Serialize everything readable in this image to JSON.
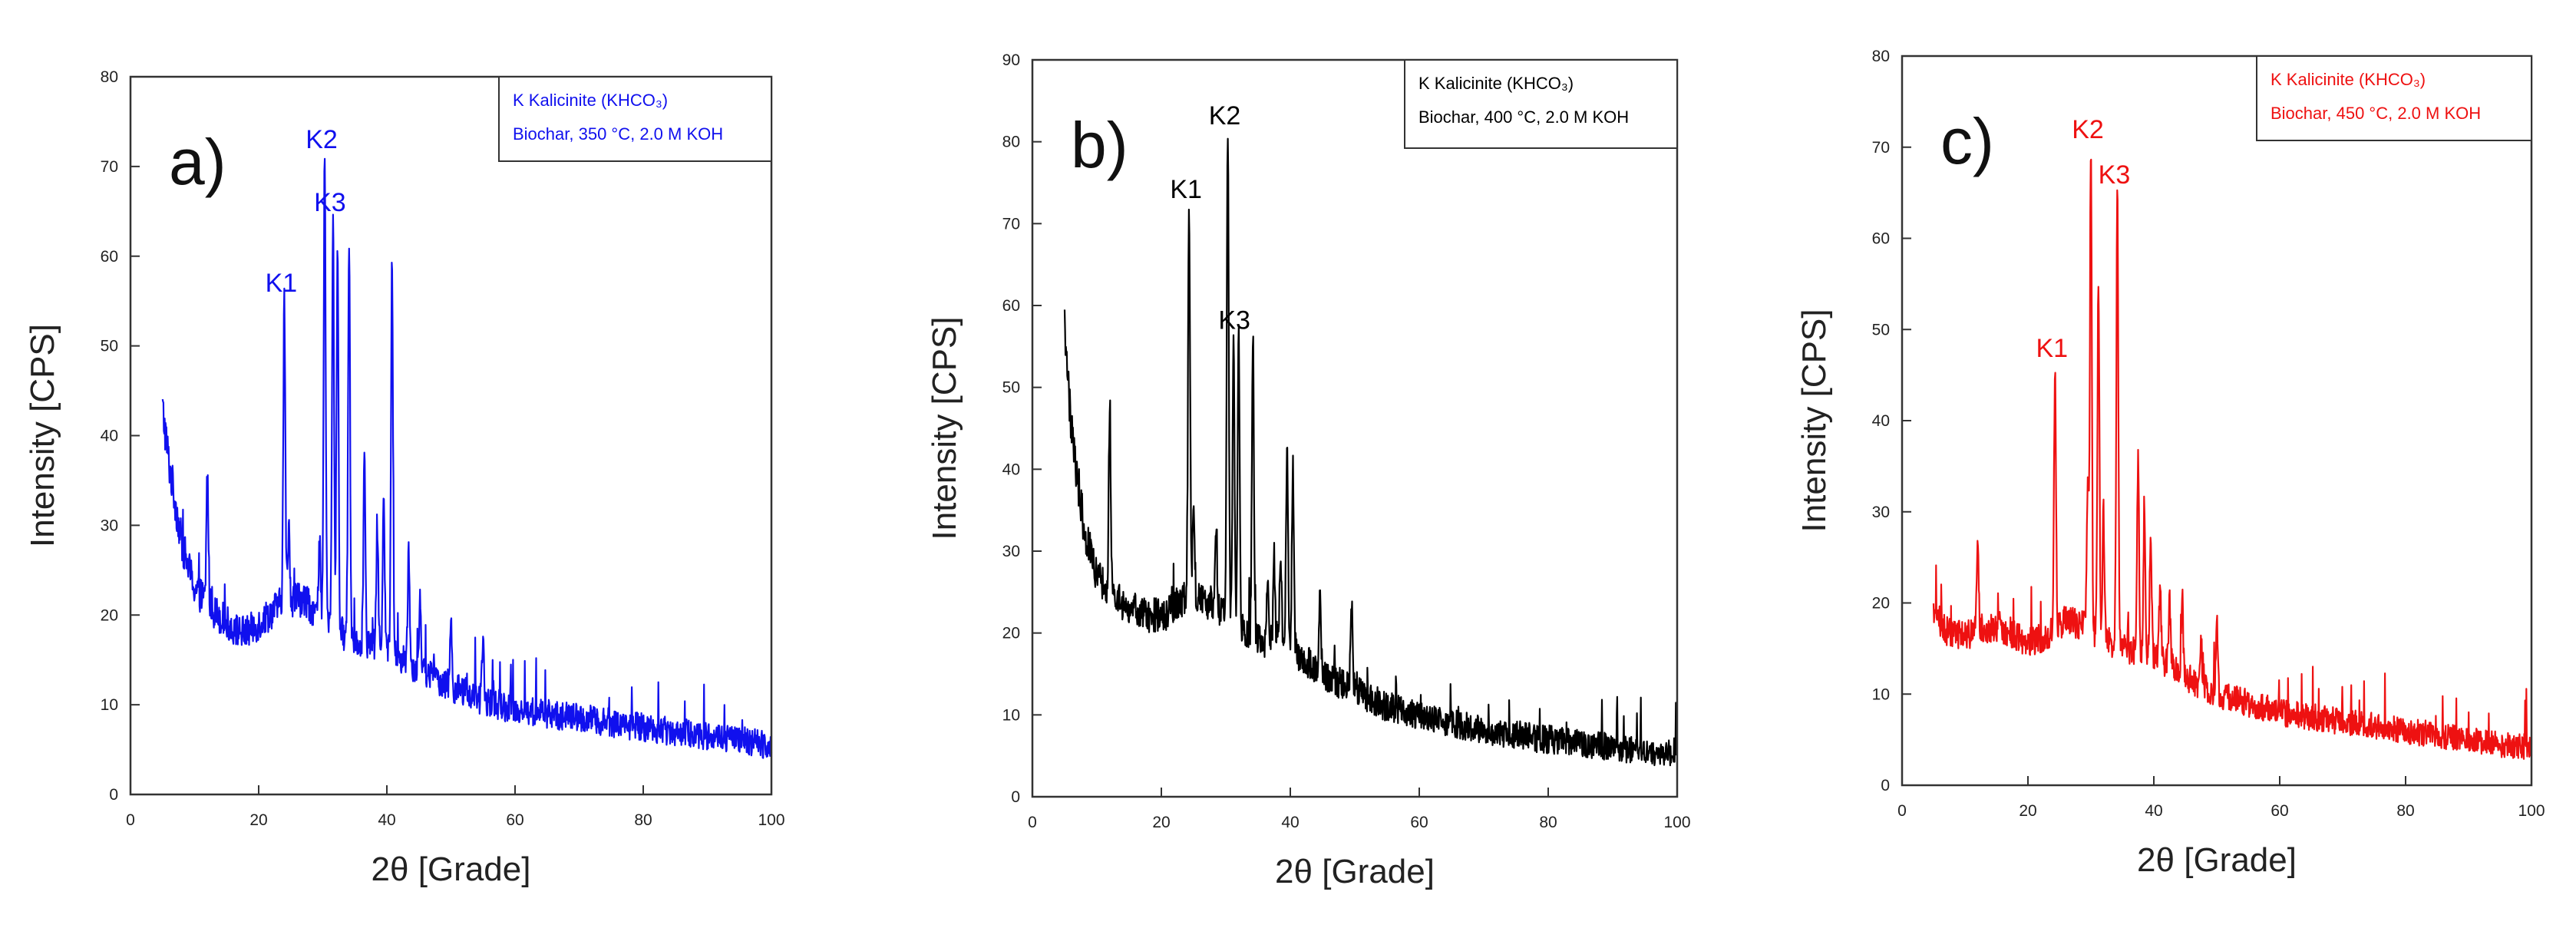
{
  "chart_data": [
    {
      "type": "line",
      "panel_label": "a)",
      "color": "#1010ee",
      "xlabel": "2θ [Grade]",
      "ylabel": "Intensity [CPS]",
      "xlim": [
        0,
        100
      ],
      "ylim": [
        0,
        80
      ],
      "xticks": [
        "0",
        "20",
        "40",
        "60",
        "80",
        "100"
      ],
      "yticks": [
        "0",
        "10",
        "20",
        "30",
        "40",
        "50",
        "60",
        "70",
        "80"
      ],
      "grid": false,
      "legend": {
        "position": "top-right",
        "entries": [
          "K Kalicinite (KHCO₃)",
          "Biochar, 350 °C, 2.0 M KOH"
        ]
      },
      "peak_labels": [
        {
          "text": "K1",
          "x": 24.0,
          "y": 55
        },
        {
          "text": "K2",
          "x": 30.3,
          "y": 71
        },
        {
          "text": "K3",
          "x": 31.6,
          "y": 64
        }
      ],
      "series": [
        {
          "background": [
            [
              5,
              43
            ],
            [
              6,
              37
            ],
            [
              8,
              28
            ],
            [
              10,
              23
            ],
            [
              13,
              20.5
            ],
            [
              16,
              18.5
            ],
            [
              18,
              18
            ],
            [
              20,
              19
            ],
            [
              23,
              21
            ],
            [
              26,
              22
            ],
            [
              28,
              21
            ],
            [
              30,
              19.5
            ],
            [
              33,
              18
            ],
            [
              36,
              17
            ],
            [
              40,
              16
            ],
            [
              45,
              14
            ],
            [
              50,
              12
            ],
            [
              55,
              10.5
            ],
            [
              60,
              9.5
            ],
            [
              65,
              9
            ],
            [
              70,
              8.5
            ],
            [
              75,
              8
            ],
            [
              80,
              7.5
            ],
            [
              85,
              7
            ],
            [
              90,
              6.5
            ],
            [
              95,
              6
            ],
            [
              100,
              5.5
            ]
          ],
          "peaks": [
            [
              12,
              36
            ],
            [
              24,
              55
            ],
            [
              24.7,
              30
            ],
            [
              29.5,
              27
            ],
            [
              30.3,
              71
            ],
            [
              31.6,
              64
            ],
            [
              32.3,
              61
            ],
            [
              34.1,
              62
            ],
            [
              36.5,
              38
            ],
            [
              38.5,
              30
            ],
            [
              39.5,
              34
            ],
            [
              40.8,
              60
            ],
            [
              43.4,
              27
            ],
            [
              45.2,
              22
            ],
            [
              50,
              19
            ],
            [
              55,
              17
            ]
          ],
          "noise": 2.4
        }
      ]
    },
    {
      "type": "line",
      "panel_label": "b)",
      "color": "#000000",
      "xlabel": "2θ [Grade]",
      "ylabel": "Intensity [CPS]",
      "xlim": [
        0,
        100
      ],
      "ylim": [
        0,
        90
      ],
      "xticks": [
        "0",
        "20",
        "40",
        "60",
        "80",
        "100"
      ],
      "yticks": [
        "0",
        "10",
        "20",
        "30",
        "40",
        "50",
        "60",
        "70",
        "80",
        "90"
      ],
      "grid": false,
      "legend": {
        "position": "top-right",
        "entries": [
          "K Kalicinite (KHCO₃)",
          "Biochar, 400 °C, 2.0 M KOH"
        ]
      },
      "peak_labels": [
        {
          "text": "K1",
          "x": 24.3,
          "y": 72
        },
        {
          "text": "K2",
          "x": 30.3,
          "y": 81
        },
        {
          "text": "K3",
          "x": 31.8,
          "y": 56
        }
      ],
      "series": [
        {
          "background": [
            [
              5,
              58
            ],
            [
              6,
              45
            ],
            [
              8,
              33
            ],
            [
              10,
              27
            ],
            [
              12,
              25
            ],
            [
              15,
              23
            ],
            [
              18,
              22
            ],
            [
              21,
              22.5
            ],
            [
              24,
              24.5
            ],
            [
              27,
              24
            ],
            [
              30,
              22
            ],
            [
              33,
              20
            ],
            [
              36,
              19
            ],
            [
              40,
              18
            ],
            [
              45,
              15
            ],
            [
              50,
              13
            ],
            [
              55,
              11
            ],
            [
              60,
              10
            ],
            [
              65,
              9
            ],
            [
              70,
              8
            ],
            [
              75,
              7.5
            ],
            [
              80,
              7
            ],
            [
              85,
              6.5
            ],
            [
              90,
              6
            ],
            [
              95,
              5.5
            ],
            [
              100,
              5.5
            ]
          ],
          "peaks": [
            [
              12,
              48
            ],
            [
              24.3,
              72
            ],
            [
              25,
              34
            ],
            [
              28.5,
              33
            ],
            [
              30.3,
              81
            ],
            [
              31.2,
              56
            ],
            [
              32,
              57
            ],
            [
              34.2,
              57
            ],
            [
              36.5,
              28
            ],
            [
              37.5,
              29
            ],
            [
              38.5,
              30
            ],
            [
              39.5,
              42
            ],
            [
              40.4,
              41
            ],
            [
              44.6,
              24
            ],
            [
              49.5,
              24
            ]
          ],
          "noise": 2.6
        }
      ]
    },
    {
      "type": "line",
      "panel_label": "c)",
      "color": "#ee1111",
      "xlabel": "2θ [Grade]",
      "ylabel": "Intensity [CPS]",
      "xlim": [
        0,
        100
      ],
      "ylim": [
        0,
        80
      ],
      "xticks": [
        "0",
        "20",
        "40",
        "60",
        "80",
        "100"
      ],
      "yticks": [
        "0",
        "10",
        "20",
        "30",
        "40",
        "50",
        "60",
        "70",
        "80"
      ],
      "grid": false,
      "legend": {
        "position": "top-right",
        "entries": [
          "K Kalicinite (KHCO₃)",
          "Biochar, 450 °C, 2.0 M KOH"
        ]
      },
      "peak_labels": [
        {
          "text": "K1",
          "x": 24.3,
          "y": 46
        },
        {
          "text": "K2",
          "x": 30.0,
          "y": 70
        },
        {
          "text": "K3",
          "x": 34.2,
          "y": 65
        }
      ],
      "series": [
        {
          "background": [
            [
              5,
              19
            ],
            [
              7,
              17
            ],
            [
              10,
              16.5
            ],
            [
              12,
              17
            ],
            [
              15,
              17.5
            ],
            [
              18,
              16.5
            ],
            [
              20,
              15.5
            ],
            [
              23,
              16.5
            ],
            [
              26,
              18
            ],
            [
              29,
              17.5
            ],
            [
              32,
              16
            ],
            [
              35,
              15
            ],
            [
              38,
              14.5
            ],
            [
              42,
              13.5
            ],
            [
              46,
              11.5
            ],
            [
              50,
              10
            ],
            [
              55,
              9
            ],
            [
              60,
              8
            ],
            [
              65,
              7.5
            ],
            [
              70,
              7
            ],
            [
              75,
              6.5
            ],
            [
              80,
              6
            ],
            [
              85,
              5.5
            ],
            [
              90,
              5
            ],
            [
              95,
              4.5
            ],
            [
              100,
              4.2
            ]
          ],
          "peaks": [
            [
              12,
              27
            ],
            [
              24.3,
              46
            ],
            [
              29.5,
              33
            ],
            [
              30.0,
              70
            ],
            [
              31.2,
              56
            ],
            [
              32,
              30
            ],
            [
              34.2,
              65
            ],
            [
              37.5,
              36
            ],
            [
              38.5,
              31
            ],
            [
              39.5,
              28
            ],
            [
              41,
              22
            ],
            [
              42.5,
              20
            ],
            [
              44.5,
              21
            ],
            [
              47.5,
              16
            ],
            [
              50,
              18
            ]
          ],
          "noise": 2.2
        }
      ]
    }
  ]
}
